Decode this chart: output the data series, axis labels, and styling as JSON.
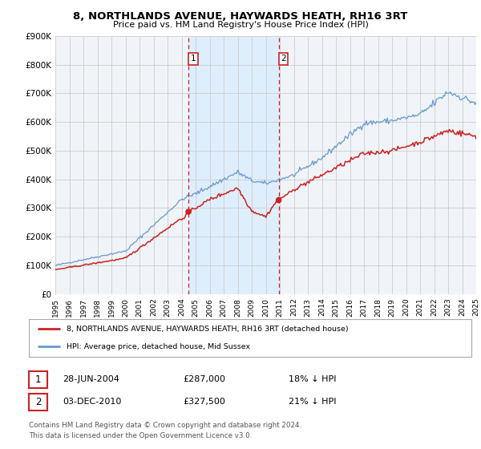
{
  "title": "8, NORTHLANDS AVENUE, HAYWARDS HEATH, RH16 3RT",
  "subtitle": "Price paid vs. HM Land Registry's House Price Index (HPI)",
  "x_start_year": 1995,
  "x_end_year": 2025,
  "y_min": 0,
  "y_max": 900000,
  "y_ticks": [
    0,
    100000,
    200000,
    300000,
    400000,
    500000,
    600000,
    700000,
    800000,
    900000
  ],
  "y_tick_labels": [
    "£0",
    "£100K",
    "£200K",
    "£300K",
    "£400K",
    "£500K",
    "£600K",
    "£700K",
    "£800K",
    "£900K"
  ],
  "hpi_color": "#6699cc",
  "price_color": "#cc2222",
  "sale1_date": 2004.49,
  "sale1_value": 287000,
  "sale1_label": "1",
  "sale2_date": 2010.92,
  "sale2_value": 327500,
  "sale2_label": "2",
  "legend_line1": "8, NORTHLANDS AVENUE, HAYWARDS HEATH, RH16 3RT (detached house)",
  "legend_line2": "HPI: Average price, detached house, Mid Sussex",
  "table_row1_num": "1",
  "table_row1_date": "28-JUN-2004",
  "table_row1_price": "£287,000",
  "table_row1_hpi": "18% ↓ HPI",
  "table_row2_num": "2",
  "table_row2_date": "03-DEC-2010",
  "table_row2_price": "£327,500",
  "table_row2_hpi": "21% ↓ HPI",
  "footnote1": "Contains HM Land Registry data © Crown copyright and database right 2024.",
  "footnote2": "This data is licensed under the Open Government Licence v3.0.",
  "background_color": "#ffffff",
  "plot_bg_color": "#f0f4f8",
  "grid_color": "#cccccc",
  "shade_color": "#ddeeff"
}
